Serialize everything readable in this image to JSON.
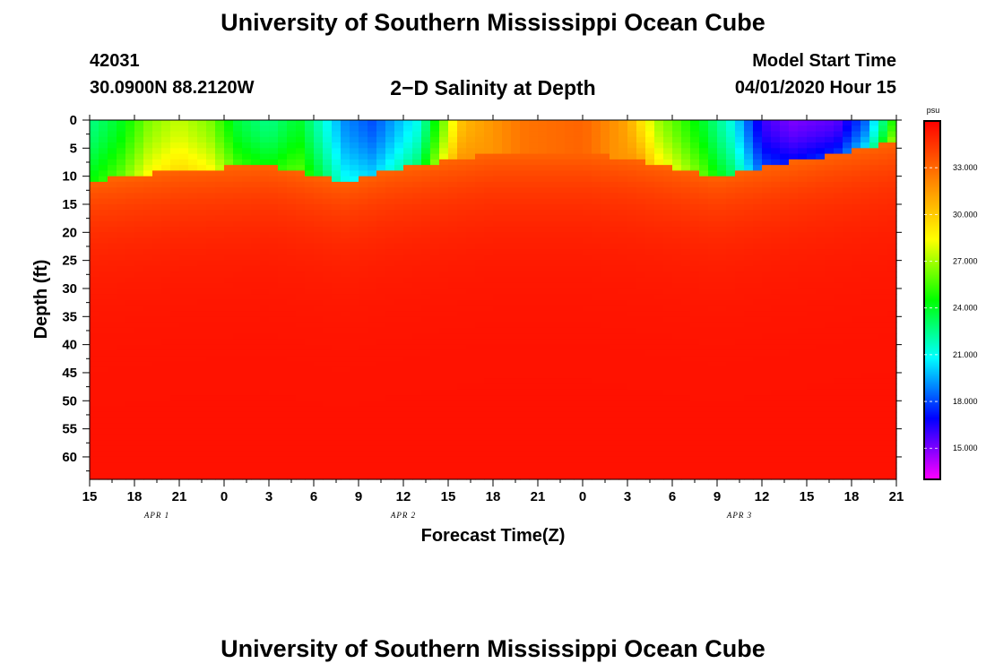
{
  "header": {
    "title": "University of Southern Mississippi Ocean Cube",
    "footer_title": "University of Southern Mississippi Ocean Cube",
    "station_id": "42031",
    "coordinates": "30.0900N 88.2120W",
    "subtitle": "2−D Salinity at Depth",
    "model_start_label": "Model Start Time",
    "model_start_value": "04/01/2020 Hour 15"
  },
  "chart_data": {
    "type": "heatmap",
    "title": "2−D Salinity at Depth",
    "xlabel": "Forecast Time(Z)",
    "ylabel": "Depth (ft)",
    "x_tick_labels": [
      "15",
      "18",
      "21",
      "0",
      "3",
      "6",
      "9",
      "12",
      "15",
      "18",
      "21",
      "0",
      "3",
      "6",
      "9",
      "12",
      "15",
      "18",
      "21"
    ],
    "x_range_hours": [
      0,
      54
    ],
    "date_labels": [
      {
        "label": "APR 1",
        "hour": 4.5
      },
      {
        "label": "APR 2",
        "hour": 21
      },
      {
        "label": "APR 3",
        "hour": 43.5
      }
    ],
    "y_ticks": [
      0,
      5,
      10,
      15,
      20,
      25,
      30,
      35,
      40,
      45,
      50,
      55,
      60
    ],
    "ylim": [
      0,
      64
    ],
    "y_inverted": true,
    "colorbar": {
      "unit": "psu",
      "ticks": [
        33.0,
        30.0,
        27.0,
        24.0,
        21.0,
        18.0,
        15.0
      ],
      "tick_labels": [
        "33.000",
        "30.000",
        "27.000",
        "24.000",
        "21.000",
        "18.000",
        "15.000"
      ],
      "range": [
        13.0,
        36.0
      ],
      "colors": [
        "#ff00ff",
        "#0000ff",
        "#00ffff",
        "#00ff00",
        "#ffff00",
        "#ff7f00",
        "#ff0000"
      ]
    },
    "surface_salinity": [
      {
        "hour": 0,
        "value": 22.5
      },
      {
        "hour": 2,
        "value": 24.0
      },
      {
        "hour": 4,
        "value": 26.5
      },
      {
        "hour": 6,
        "value": 27.5
      },
      {
        "hour": 8,
        "value": 26.5
      },
      {
        "hour": 10,
        "value": 23.5
      },
      {
        "hour": 12,
        "value": 22.5
      },
      {
        "hour": 14,
        "value": 24.0
      },
      {
        "hour": 17,
        "value": 19.0
      },
      {
        "hour": 19,
        "value": 18.0
      },
      {
        "hour": 22,
        "value": 21.0
      },
      {
        "hour": 25,
        "value": 30.5
      },
      {
        "hour": 29,
        "value": 32.5
      },
      {
        "hour": 33,
        "value": 33.0
      },
      {
        "hour": 36,
        "value": 31.0
      },
      {
        "hour": 38,
        "value": 27.0
      },
      {
        "hour": 41,
        "value": 24.0
      },
      {
        "hour": 43,
        "value": 21.0
      },
      {
        "hour": 45,
        "value": 16.0
      },
      {
        "hour": 47,
        "value": 15.0
      },
      {
        "hour": 50,
        "value": 15.5
      },
      {
        "hour": 52,
        "value": 18.5
      },
      {
        "hour": 54,
        "value": 26.0
      }
    ],
    "mixed_layer_depth_ft": [
      {
        "hour": 0,
        "value": 11
      },
      {
        "hour": 6,
        "value": 9
      },
      {
        "hour": 12,
        "value": 8
      },
      {
        "hour": 17,
        "value": 11
      },
      {
        "hour": 20,
        "value": 9
      },
      {
        "hour": 27,
        "value": 6
      },
      {
        "hour": 33,
        "value": 6
      },
      {
        "hour": 36,
        "value": 7
      },
      {
        "hour": 42,
        "value": 10
      },
      {
        "hour": 48,
        "value": 7
      },
      {
        "hour": 54,
        "value": 4
      }
    ],
    "deep_salinity_psu": 35.5
  }
}
